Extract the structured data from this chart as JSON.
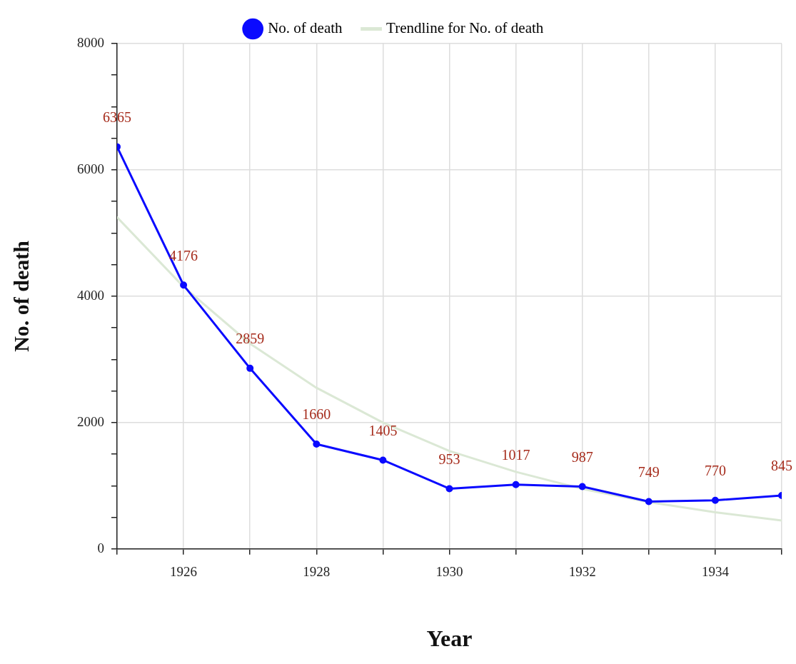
{
  "chart_data": {
    "type": "line",
    "xlabel": "Year",
    "ylabel": "No. of death",
    "x": [
      1925,
      1926,
      1927,
      1928,
      1929,
      1930,
      1931,
      1932,
      1933,
      1934,
      1935
    ],
    "series": [
      {
        "name": "No. of death",
        "color": "#0a0aff",
        "marker": "circle",
        "values": [
          6365,
          4176,
          2859,
          1660,
          1405,
          953,
          1017,
          987,
          749,
          770,
          845
        ],
        "value_labels": [
          "6365",
          "4176",
          "2859",
          "1660",
          "1405",
          "953",
          "1017",
          "987",
          "749",
          "770",
          "845"
        ]
      },
      {
        "name": "Trendline for No. of death",
        "color": "#dbe8d5",
        "marker": "none",
        "values": [
          5250,
          4150,
          3250,
          2550,
          2000,
          1550,
          1220,
          950,
          740,
          580,
          450
        ]
      }
    ],
    "xlim": [
      1925,
      1935
    ],
    "xticks": [
      {
        "value": 1925,
        "label": null
      },
      1926,
      {
        "value": 1927,
        "label": null
      },
      1928,
      {
        "value": 1929,
        "label": null
      },
      1930,
      {
        "value": 1931,
        "label": null
      },
      1932,
      {
        "value": 1933,
        "label": null
      },
      1934,
      {
        "value": 1935,
        "label": null
      }
    ],
    "ylim": [
      0,
      8000
    ],
    "yticks": [
      0,
      {
        "value": 500,
        "label": null
      },
      {
        "value": 1000,
        "label": null
      },
      {
        "value": 1500,
        "label": null
      },
      2000,
      {
        "value": 2500,
        "label": null
      },
      {
        "value": 3000,
        "label": null
      },
      {
        "value": 3500,
        "label": null
      },
      4000,
      {
        "value": 4500,
        "label": null
      },
      {
        "value": 5000,
        "label": null
      },
      {
        "value": 5500,
        "label": null
      },
      6000,
      {
        "value": 6500,
        "label": null
      },
      {
        "value": 7000,
        "label": null
      },
      {
        "value": 7500,
        "label": null
      },
      8000
    ],
    "grid": true,
    "legend": "top",
    "line_style": "solid"
  }
}
